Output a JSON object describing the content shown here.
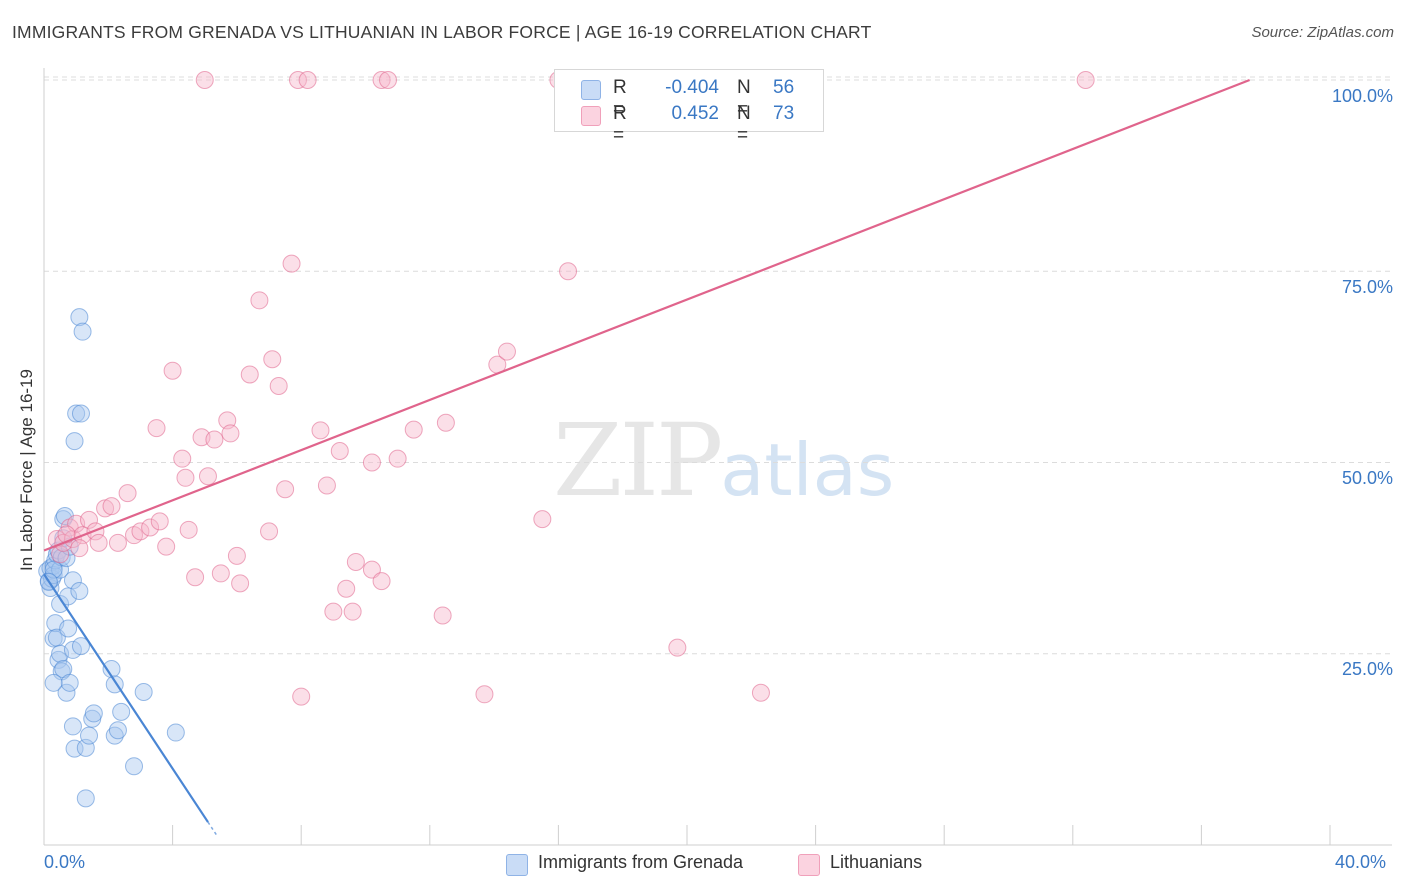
{
  "header": {
    "title": "IMMIGRANTS FROM GRENADA VS LITHUANIAN IN LABOR FORCE | AGE 16-19 CORRELATION CHART",
    "source": "Source: ZipAtlas.com"
  },
  "watermark": {
    "zip": "ZIP",
    "atlas": "atlas"
  },
  "legend": {
    "rows": [
      {
        "r_label": "R =",
        "r_value": "-0.404",
        "n_label": "N =",
        "n_value": "56",
        "color": "#a9c8f0"
      },
      {
        "r_label": "R =",
        "r_value": "0.452",
        "n_label": "N =",
        "n_value": "73",
        "color": "#f6b9cc"
      }
    ]
  },
  "bottom_legend": [
    {
      "label": "Immigrants from Grenada",
      "color": "#a9c8f0"
    },
    {
      "label": "Lithuanians",
      "color": "#f6b9cc"
    }
  ],
  "chart_data": {
    "type": "scatter",
    "title": "IMMIGRANTS FROM GRENADA VS LITHUANIAN IN LABOR FORCE | AGE 16-19 CORRELATION CHART",
    "xlabel": "",
    "ylabel": "In Labor Force | Age 16-19",
    "xlim": [
      0,
      40
    ],
    "ylim": [
      0,
      100
    ],
    "x_tick_labels": [
      "0.0%",
      "40.0%"
    ],
    "y_tick_labels": [
      "25.0%",
      "50.0%",
      "75.0%",
      "100.0%"
    ],
    "y_ticks": [
      25,
      50,
      75,
      100
    ],
    "grid": "horizontal dashed",
    "legend_placement": "top-center",
    "series": [
      {
        "name": "Immigrants from Grenada",
        "color": "#4a86d4",
        "fill": "#a9c8f0",
        "r": -0.404,
        "n": 56,
        "trend": {
          "x": [
            0.0,
            5.1
          ],
          "y": [
            35.4,
            3.0
          ],
          "extend_dashed_to_x": 5.4
        },
        "points": [
          [
            0.1,
            35.8
          ],
          [
            0.15,
            34.5
          ],
          [
            0.2,
            36.2
          ],
          [
            0.2,
            33.6
          ],
          [
            0.25,
            34.8
          ],
          [
            0.3,
            36.5
          ],
          [
            0.3,
            35.3
          ],
          [
            0.35,
            37.2
          ],
          [
            0.4,
            38.0
          ],
          [
            0.45,
            38.5
          ],
          [
            0.5,
            36.0
          ],
          [
            0.55,
            37.6
          ],
          [
            0.6,
            40.1
          ],
          [
            0.6,
            42.6
          ],
          [
            0.65,
            43.0
          ],
          [
            0.7,
            37.5
          ],
          [
            0.8,
            39.0
          ],
          [
            0.9,
            34.6
          ],
          [
            0.95,
            52.8
          ],
          [
            1.0,
            56.4
          ],
          [
            1.1,
            69.0
          ],
          [
            1.15,
            56.4
          ],
          [
            1.2,
            67.1
          ],
          [
            0.3,
            27.0
          ],
          [
            0.35,
            29.0
          ],
          [
            0.4,
            27.1
          ],
          [
            0.45,
            24.2
          ],
          [
            0.5,
            25.0
          ],
          [
            0.55,
            22.7
          ],
          [
            0.6,
            23.0
          ],
          [
            0.7,
            19.9
          ],
          [
            0.75,
            28.3
          ],
          [
            0.8,
            21.2
          ],
          [
            0.9,
            25.5
          ],
          [
            0.3,
            21.2
          ],
          [
            0.5,
            31.5
          ],
          [
            0.75,
            32.5
          ],
          [
            1.1,
            33.2
          ],
          [
            1.15,
            26.0
          ],
          [
            0.9,
            15.5
          ],
          [
            0.95,
            12.6
          ],
          [
            1.3,
            12.7
          ],
          [
            1.4,
            14.3
          ],
          [
            1.5,
            16.5
          ],
          [
            1.55,
            17.2
          ],
          [
            1.3,
            6.1
          ],
          [
            2.1,
            23.0
          ],
          [
            2.2,
            14.3
          ],
          [
            2.2,
            21.0
          ],
          [
            2.3,
            15.0
          ],
          [
            2.4,
            17.4
          ],
          [
            2.8,
            10.3
          ],
          [
            3.1,
            20.0
          ],
          [
            4.1,
            14.7
          ],
          [
            0.3,
            36.0
          ],
          [
            0.15,
            34.4
          ]
        ]
      },
      {
        "name": "Lithuanians",
        "color": "#e0648c",
        "fill": "#f6b9cc",
        "r": 0.452,
        "n": 73,
        "trend": {
          "x": [
            0.0,
            37.5
          ],
          "y": [
            38.5,
            100.0
          ]
        },
        "points": [
          [
            0.4,
            40.0
          ],
          [
            0.5,
            38.0
          ],
          [
            0.6,
            39.5
          ],
          [
            0.8,
            41.5
          ],
          [
            0.9,
            40.0
          ],
          [
            1.0,
            42.0
          ],
          [
            1.2,
            40.5
          ],
          [
            1.4,
            42.5
          ],
          [
            1.6,
            41.0
          ],
          [
            1.7,
            39.5
          ],
          [
            1.9,
            44.0
          ],
          [
            2.1,
            44.3
          ],
          [
            2.3,
            39.5
          ],
          [
            2.6,
            46.0
          ],
          [
            2.8,
            40.5
          ],
          [
            3.0,
            41.0
          ],
          [
            3.3,
            41.5
          ],
          [
            3.5,
            54.5
          ],
          [
            3.6,
            42.3
          ],
          [
            3.8,
            39.0
          ],
          [
            4.0,
            62.0
          ],
          [
            4.3,
            50.5
          ],
          [
            4.4,
            48.0
          ],
          [
            4.5,
            41.2
          ],
          [
            4.7,
            35.0
          ],
          [
            4.9,
            53.3
          ],
          [
            5.1,
            48.2
          ],
          [
            5.3,
            53.0
          ],
          [
            5.5,
            35.5
          ],
          [
            5.7,
            55.5
          ],
          [
            5.8,
            53.8
          ],
          [
            6.0,
            37.8
          ],
          [
            6.1,
            34.2
          ],
          [
            6.4,
            61.5
          ],
          [
            6.7,
            71.2
          ],
          [
            7.0,
            41.0
          ],
          [
            7.1,
            63.5
          ],
          [
            7.3,
            60.0
          ],
          [
            7.5,
            46.5
          ],
          [
            7.7,
            76.0
          ],
          [
            7.9,
            100.0
          ],
          [
            8.2,
            100.0
          ],
          [
            8.0,
            19.4
          ],
          [
            8.6,
            54.2
          ],
          [
            8.8,
            47.0
          ],
          [
            9.0,
            30.5
          ],
          [
            9.2,
            51.5
          ],
          [
            9.4,
            33.5
          ],
          [
            9.6,
            30.5
          ],
          [
            9.7,
            37.0
          ],
          [
            10.2,
            50.0
          ],
          [
            10.2,
            36.0
          ],
          [
            10.5,
            34.5
          ],
          [
            10.5,
            100.0
          ],
          [
            10.7,
            100.0
          ],
          [
            11.0,
            50.5
          ],
          [
            11.5,
            54.3
          ],
          [
            12.4,
            30.0
          ],
          [
            12.5,
            55.2
          ],
          [
            13.7,
            19.7
          ],
          [
            14.1,
            62.8
          ],
          [
            14.4,
            64.5
          ],
          [
            15.5,
            42.6
          ],
          [
            16.0,
            100.0
          ],
          [
            16.3,
            75.0
          ],
          [
            19.5,
            100.0
          ],
          [
            19.7,
            25.8
          ],
          [
            22.3,
            19.9
          ],
          [
            23.9,
            100.0
          ],
          [
            32.4,
            100.0
          ],
          [
            0.7,
            40.6
          ],
          [
            1.1,
            38.8
          ],
          [
            5.0,
            100.0
          ]
        ]
      }
    ]
  }
}
